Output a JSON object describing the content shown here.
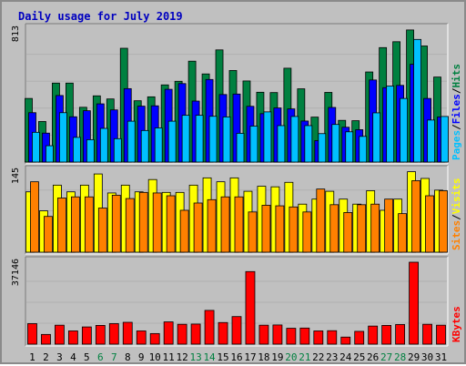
{
  "chart_data": {
    "type": "bar",
    "title": "Daily usage for July 2019",
    "categories": [
      "1",
      "2",
      "3",
      "4",
      "5",
      "6",
      "7",
      "8",
      "9",
      "10",
      "11",
      "12",
      "13",
      "14",
      "15",
      "16",
      "17",
      "18",
      "19",
      "20",
      "21",
      "22",
      "23",
      "24",
      "25",
      "26",
      "27",
      "28",
      "29",
      "30",
      "31"
    ],
    "weekend_days": [
      "6",
      "7",
      "13",
      "14",
      "20",
      "21",
      "27",
      "28"
    ],
    "panels": [
      {
        "id": "hits-files-pages",
        "ymax": 813,
        "ymax_label": "813",
        "legend": [
          {
            "text": "Pages",
            "color": "#00c0ff"
          },
          {
            "text": "/",
            "color": "#000000"
          },
          {
            "text": "Files",
            "color": "#0000ff"
          },
          {
            "text": "/",
            "color": "#000000"
          },
          {
            "text": "Hits",
            "color": "#008040"
          }
        ],
        "series": [
          {
            "name": "Hits",
            "color": "#008040",
            "values": [
              389,
              248,
              483,
              483,
              335,
              405,
              386,
              696,
              375,
              399,
              472,
              494,
              617,
              539,
              686,
              560,
              496,
              427,
              425,
              574,
              448,
              275,
              426,
              255,
              253,
              551,
              700,
              736,
              808,
              710,
              520
            ]
          },
          {
            "name": "Files",
            "color": "#0000ff",
            "values": [
              302,
              177,
              407,
              277,
              314,
              356,
              319,
              449,
              342,
              344,
              445,
              480,
              373,
              505,
              413,
              416,
              341,
              296,
              331,
              325,
              251,
              131,
              334,
              213,
              198,
              502,
              455,
              469,
              598,
              389,
              276
            ]
          },
          {
            "name": "Pages",
            "color": "#00c0ff",
            "values": [
              182,
              100,
              302,
              151,
              137,
              206,
              143,
              250,
              193,
              209,
              250,
              286,
              286,
              280,
              276,
              176,
              220,
              307,
              223,
              279,
              223,
              174,
              230,
              185,
              157,
              301,
              465,
              389,
              750,
              257,
              279
            ]
          }
        ]
      },
      {
        "id": "visits-sites",
        "ymax": 145,
        "ymax_label": "145",
        "legend": [
          {
            "text": "Sites",
            "color": "#ff8000"
          },
          {
            "text": "/",
            "color": "#000000"
          },
          {
            "text": "Visits",
            "color": "#ffff00"
          }
        ],
        "series": [
          {
            "name": "Visits",
            "color": "#ffff00",
            "values": [
              108,
              74,
              120,
              108,
              120,
              140,
              106,
              120,
              108,
              130,
              107,
              107,
              120,
              133,
              126,
              133,
              109,
              118,
              117,
              125,
              86,
              95,
              109,
              95,
              86,
              110,
              75,
              95,
              144,
              132,
              111
            ]
          },
          {
            "name": "Sites",
            "color": "#ff8000",
            "values": [
              126,
              64,
              97,
              99,
              99,
              79,
              102,
              96,
              107,
              106,
              101,
              75,
              88,
              94,
              99,
              99,
              72,
              84,
              83,
              81,
              72,
              113,
              85,
              71,
              85,
              86,
              95,
              69,
              128,
              101,
              110
            ]
          }
        ]
      },
      {
        "id": "kbytes",
        "ymax": 37146,
        "ymax_label": "37146",
        "legend": [
          {
            "text": "KBytes",
            "color": "#ff0000"
          }
        ],
        "series": [
          {
            "name": "KBytes",
            "color": "#ff0000",
            "values": [
              9300,
              4400,
              8600,
              6000,
              7800,
              8500,
              9300,
              9900,
              6000,
              4800,
              10100,
              9000,
              9100,
              15300,
              9800,
              12500,
              32900,
              8600,
              8700,
              7200,
              7300,
              6000,
              6100,
              3200,
              5800,
              8200,
              8500,
              8900,
              37146,
              9000,
              8600
            ]
          }
        ]
      }
    ]
  }
}
